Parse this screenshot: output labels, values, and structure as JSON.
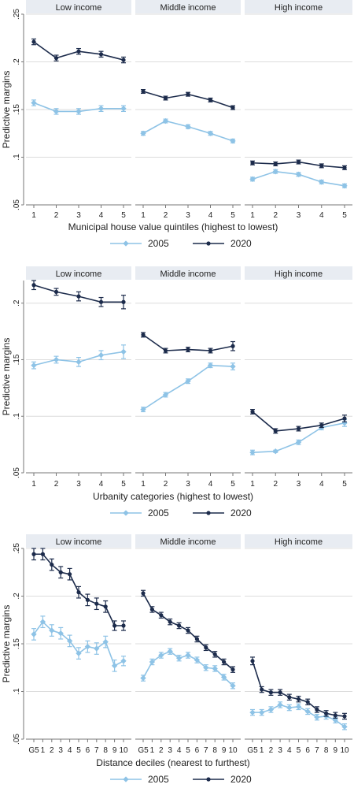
{
  "colors": {
    "series_2005": "#8ec3e6",
    "series_2020": "#1c2b4b",
    "grid": "#dcdcdc",
    "axis": "#777777",
    "band": "#e8ecf2"
  },
  "chart_data": [
    {
      "type": "line",
      "ylabel": "Predictive margins",
      "xlabel": "Municipal house value quintiles (highest to lowest)",
      "ylim": [
        0.05,
        0.25
      ],
      "yticks": [
        0.05,
        0.1,
        0.15,
        0.2,
        0.25
      ],
      "ytick_labels": [
        ".05",
        ".1",
        ".15",
        ".2",
        ".25"
      ],
      "grid": true,
      "legend_position": "bottom",
      "categories": [
        "1",
        "2",
        "3",
        "4",
        "5"
      ],
      "panels": [
        {
          "title": "Low income",
          "series": [
            {
              "name": "2005",
              "values": [
                0.157,
                0.148,
                0.148,
                0.151,
                0.151
              ],
              "err": [
                0.003,
                0.003,
                0.003,
                0.003,
                0.003
              ]
            },
            {
              "name": "2020",
              "values": [
                0.221,
                0.204,
                0.211,
                0.208,
                0.202
              ],
              "err": [
                0.003,
                0.003,
                0.003,
                0.003,
                0.003
              ]
            }
          ]
        },
        {
          "title": "Middle income",
          "series": [
            {
              "name": "2005",
              "values": [
                0.125,
                0.138,
                0.132,
                0.125,
                0.117
              ],
              "err": [
                0.002,
                0.002,
                0.002,
                0.002,
                0.002
              ]
            },
            {
              "name": "2020",
              "values": [
                0.169,
                0.162,
                0.166,
                0.16,
                0.152
              ],
              "err": [
                0.002,
                0.002,
                0.002,
                0.002,
                0.002
              ]
            }
          ]
        },
        {
          "title": "High income",
          "series": [
            {
              "name": "2005",
              "values": [
                0.077,
                0.085,
                0.082,
                0.074,
                0.07
              ],
              "err": [
                0.002,
                0.002,
                0.002,
                0.002,
                0.002
              ]
            },
            {
              "name": "2020",
              "values": [
                0.094,
                0.093,
                0.095,
                0.091,
                0.089
              ],
              "err": [
                0.002,
                0.002,
                0.002,
                0.002,
                0.002
              ]
            }
          ]
        }
      ]
    },
    {
      "type": "line",
      "ylabel": "Predictive margins",
      "xlabel": "Urbanity categories (highest to lowest)",
      "ylim": [
        0.05,
        0.22
      ],
      "yticks": [
        0.05,
        0.1,
        0.15,
        0.2
      ],
      "ytick_labels": [
        ".05",
        ".1",
        ".15",
        ".2"
      ],
      "grid": true,
      "legend_position": "bottom",
      "categories": [
        "1",
        "2",
        "3",
        "4",
        "5"
      ],
      "panels": [
        {
          "title": "Low income",
          "series": [
            {
              "name": "2005",
              "values": [
                0.145,
                0.15,
                0.148,
                0.154,
                0.157
              ],
              "err": [
                0.003,
                0.003,
                0.004,
                0.004,
                0.006
              ]
            },
            {
              "name": "2020",
              "values": [
                0.216,
                0.21,
                0.206,
                0.201,
                0.201
              ],
              "err": [
                0.004,
                0.003,
                0.004,
                0.004,
                0.006
              ]
            }
          ]
        },
        {
          "title": "Middle income",
          "series": [
            {
              "name": "2005",
              "values": [
                0.106,
                0.119,
                0.131,
                0.145,
                0.144
              ],
              "err": [
                0.002,
                0.002,
                0.002,
                0.002,
                0.003
              ]
            },
            {
              "name": "2020",
              "values": [
                0.172,
                0.158,
                0.159,
                0.158,
                0.162
              ],
              "err": [
                0.002,
                0.002,
                0.002,
                0.002,
                0.004
              ]
            }
          ]
        },
        {
          "title": "High income",
          "series": [
            {
              "name": "2005",
              "values": [
                0.068,
                0.069,
                0.077,
                0.09,
                0.094
              ],
              "err": [
                0.002,
                0.001,
                0.002,
                0.002,
                0.003
              ]
            },
            {
              "name": "2020",
              "values": [
                0.104,
                0.087,
                0.089,
                0.092,
                0.098
              ],
              "err": [
                0.002,
                0.002,
                0.002,
                0.002,
                0.003
              ]
            }
          ]
        }
      ]
    },
    {
      "type": "line",
      "ylabel": "Predictive margins",
      "xlabel": "Distance deciles (nearest to furthest)",
      "ylim": [
        0.05,
        0.25
      ],
      "yticks": [
        0.05,
        0.1,
        0.15,
        0.2,
        0.25
      ],
      "ytick_labels": [
        ".05",
        ".1",
        ".15",
        ".2",
        ".25"
      ],
      "grid": true,
      "legend_position": "bottom",
      "categories": [
        "G5",
        "1",
        "2",
        "3",
        "4",
        "5",
        "6",
        "7",
        "8",
        "9",
        "10"
      ],
      "panels": [
        {
          "title": "Low income",
          "series": [
            {
              "name": "2005",
              "values": [
                0.16,
                0.173,
                0.164,
                0.161,
                0.153,
                0.14,
                0.147,
                0.145,
                0.152,
                0.127,
                0.132
              ],
              "err": [
                0.006,
                0.006,
                0.006,
                0.006,
                0.006,
                0.006,
                0.006,
                0.006,
                0.006,
                0.006,
                0.005
              ]
            },
            {
              "name": "2020",
              "values": [
                0.244,
                0.244,
                0.233,
                0.225,
                0.223,
                0.204,
                0.196,
                0.192,
                0.189,
                0.169,
                0.169
              ],
              "err": [
                0.006,
                0.006,
                0.006,
                0.006,
                0.006,
                0.006,
                0.006,
                0.006,
                0.006,
                0.005,
                0.005
              ]
            }
          ]
        },
        {
          "title": "Middle income",
          "series": [
            {
              "name": "2005",
              "values": [
                0.114,
                0.131,
                0.138,
                0.142,
                0.135,
                0.138,
                0.133,
                0.125,
                0.124,
                0.115,
                0.106
              ],
              "err": [
                0.003,
                0.003,
                0.003,
                0.003,
                0.003,
                0.003,
                0.003,
                0.003,
                0.003,
                0.003,
                0.003
              ]
            },
            {
              "name": "2020",
              "values": [
                0.203,
                0.186,
                0.18,
                0.173,
                0.169,
                0.164,
                0.155,
                0.146,
                0.139,
                0.131,
                0.123
              ],
              "err": [
                0.003,
                0.003,
                0.003,
                0.003,
                0.003,
                0.003,
                0.003,
                0.003,
                0.003,
                0.003,
                0.003
              ]
            }
          ]
        },
        {
          "title": "High income",
          "series": [
            {
              "name": "2005",
              "values": [
                0.078,
                0.078,
                0.081,
                0.086,
                0.083,
                0.084,
                0.079,
                0.073,
                0.074,
                0.07,
                0.063
              ],
              "err": [
                0.003,
                0.003,
                0.003,
                0.003,
                0.003,
                0.003,
                0.003,
                0.003,
                0.003,
                0.003,
                0.003
              ]
            },
            {
              "name": "2020",
              "values": [
                0.132,
                0.102,
                0.099,
                0.099,
                0.094,
                0.092,
                0.089,
                0.081,
                0.077,
                0.075,
                0.074
              ],
              "err": [
                0.004,
                0.003,
                0.003,
                0.003,
                0.003,
                0.003,
                0.003,
                0.003,
                0.003,
                0.003,
                0.003
              ]
            }
          ]
        }
      ]
    }
  ]
}
